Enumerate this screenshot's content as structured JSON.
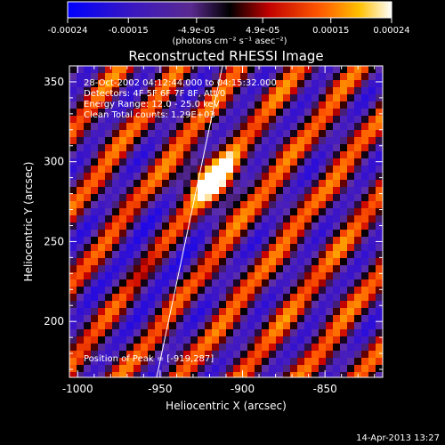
{
  "colorbar": {
    "ticks": [
      "-0.00024",
      "-0.00015",
      "-4.9e-05",
      "4.9e-05",
      "0.00015",
      "0.00024"
    ],
    "tick_values": [
      -0.00024,
      -0.00015,
      -4.9e-05,
      4.9e-05,
      0.00015,
      0.00024
    ],
    "range": [
      -0.00024,
      0.00024
    ],
    "units": "(photons cm⁻² s⁻¹ asec⁻²)"
  },
  "chart_data": {
    "type": "heatmap",
    "title": "Reconstructed RHESSI Image",
    "xlabel": "Heliocentric X (arcsec)",
    "ylabel": "Heliocentric Y (arcsec)",
    "xlim": [
      -1005,
      -815
    ],
    "ylim": [
      165,
      360
    ],
    "xticks": [
      "-1000",
      "-950",
      "-900",
      "-850"
    ],
    "xtick_values": [
      -1000,
      -950,
      -900,
      -850
    ],
    "yticks": [
      "200",
      "250",
      "300",
      "350"
    ],
    "ytick_values": [
      200,
      250,
      300,
      350
    ],
    "peak": [
      -919,
      287
    ],
    "colormap": [
      "#0a00ff",
      "#3a00c8",
      "#5e2ea8",
      "#1a0620",
      "#000000",
      "#c80000",
      "#ff5500",
      "#ffb000",
      "#ffffff"
    ],
    "annotations": [
      "28-Oct-2002 04:12:44.000 to 04:15:32.000",
      "Detectors: 4F 5F 6F 7F 8F, Att/0",
      "Energy Range: 12.0 - 25.0 keV",
      "Clean    Total counts: 1.29E+03",
      "Position of Peak = [-919,287]"
    ]
  },
  "footer": {
    "timestamp": "14-Apr-2013 13:27"
  }
}
